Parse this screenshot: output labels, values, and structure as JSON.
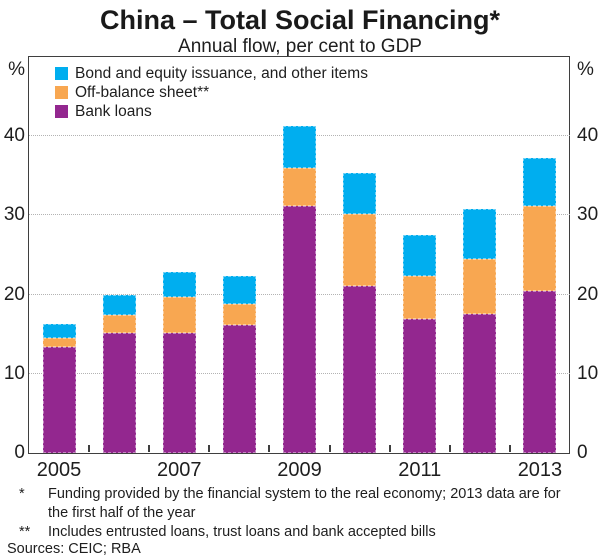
{
  "title": "China – Total Social Financing*",
  "subtitle": "Annual flow, per cent to GDP",
  "axis": {
    "left_unit": "%",
    "right_unit": "%",
    "yticks": [
      0,
      10,
      20,
      30,
      40
    ],
    "ylim": [
      0,
      50
    ],
    "xtick_labels": [
      "2005",
      "2007",
      "2009",
      "2011",
      "2013"
    ]
  },
  "legend": [
    {
      "label": "Bond and equity issuance, and other items",
      "color": "#00AEEF"
    },
    {
      "label": "Off-balance sheet**",
      "color": "#F8A751"
    },
    {
      "label": "Bank loans",
      "color": "#93278F"
    }
  ],
  "chart_data": {
    "type": "bar",
    "stacked": true,
    "title": "China – Total Social Financing*",
    "subtitle": "Annual flow, per cent to GDP",
    "ylabel": "%",
    "ylim": [
      0,
      50
    ],
    "yticks": [
      0,
      10,
      20,
      30,
      40
    ],
    "grid": "horizontal dotted",
    "legend_position": "top-left inside plot",
    "categories": [
      "2005",
      "2006",
      "2007",
      "2008",
      "2009",
      "2010",
      "2011",
      "2012",
      "2013"
    ],
    "series": [
      {
        "name": "Bank loans",
        "color": "#93278F",
        "values": [
          13.4,
          15.1,
          15.1,
          16.2,
          31.2,
          21.1,
          16.9,
          17.6,
          20.5
        ]
      },
      {
        "name": "Off-balance sheet**",
        "color": "#F8A751",
        "values": [
          1.1,
          2.3,
          4.6,
          2.6,
          4.8,
          9.1,
          5.5,
          6.9,
          10.7
        ]
      },
      {
        "name": "Bond and equity issuance, and other items",
        "color": "#00AEEF",
        "values": [
          1.8,
          2.6,
          3.2,
          3.6,
          5.3,
          5.2,
          5.1,
          6.3,
          6.0
        ]
      }
    ],
    "totals": [
      16.3,
      20.0,
      22.9,
      22.4,
      41.3,
      35.4,
      27.5,
      30.8,
      37.2
    ]
  },
  "footnotes": [
    {
      "marker": "*",
      "text": "Funding provided by the financial system to the real economy; 2013 data are for the first half of the year"
    },
    {
      "marker": "**",
      "text": "Includes entrusted loans, trust loans and bank accepted bills"
    }
  ],
  "sources": "Sources: CEIC; RBA"
}
